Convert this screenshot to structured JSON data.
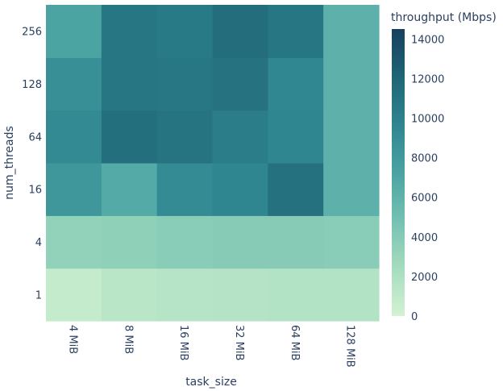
{
  "chart_data": {
    "type": "heatmap",
    "xlabel": "task_size",
    "ylabel": "num_threads",
    "x_categories": [
      "4 MiB",
      "8 MiB",
      "16 MiB",
      "32 MiB",
      "64 MiB",
      "128 MiB"
    ],
    "y_categories": [
      "1",
      "4",
      "16",
      "64",
      "128",
      "256"
    ],
    "z": [
      [
        800,
        1300,
        1500,
        1600,
        1700,
        1700
      ],
      [
        3300,
        3500,
        3800,
        3900,
        3900,
        3800
      ],
      [
        8200,
        6700,
        9200,
        9600,
        11200,
        6100
      ],
      [
        9300,
        11300,
        11000,
        10300,
        9700,
        6100
      ],
      [
        8900,
        10800,
        10700,
        11100,
        9500,
        6100
      ],
      [
        7200,
        10800,
        10500,
        11500,
        10800,
        6100
      ]
    ],
    "colorbar": {
      "title": "throughput (Mbps)",
      "min": 0,
      "max": 14500,
      "ticks": [
        "0",
        "2000",
        "4000",
        "6000",
        "8000",
        "10000",
        "12000",
        "14000"
      ],
      "tick_values": [
        0,
        2000,
        4000,
        6000,
        8000,
        10000,
        12000,
        14000
      ]
    },
    "colorscale": [
      "#d3f2d3",
      "#a5dcbf",
      "#74c1b2",
      "#4aa3a2",
      "#2f8590",
      "#1f6575",
      "#173f5f"
    ]
  }
}
